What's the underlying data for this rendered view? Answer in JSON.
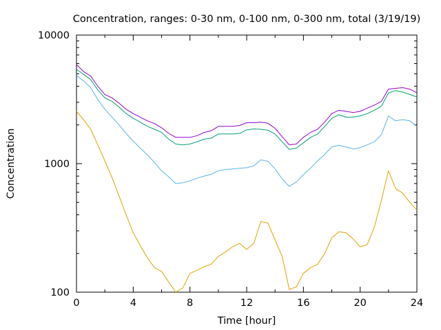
{
  "chart_data": {
    "type": "line",
    "title": "Concentration, ranges: 0-30 nm, 0-100 nm, 0-300 nm, total (3/19/19)",
    "xlabel": "Time [hour]",
    "ylabel": "Concentration",
    "xlim": [
      0,
      24
    ],
    "ylim": [
      100,
      10000
    ],
    "y_scale": "log",
    "x_ticks": [
      "0",
      "4",
      "8",
      "12",
      "16",
      "20",
      "24"
    ],
    "x_tick_values": [
      0,
      4,
      8,
      12,
      16,
      20,
      24
    ],
    "y_ticks": [
      "100",
      "1000",
      "10000"
    ],
    "y_tick_values": [
      100,
      1000,
      10000
    ],
    "grid": false,
    "legend": "none",
    "x": [
      0,
      0.5,
      1,
      1.5,
      2,
      2.5,
      3,
      3.5,
      4,
      4.5,
      5,
      5.5,
      6,
      6.5,
      7,
      7.5,
      8,
      8.5,
      9,
      9.5,
      10,
      10.5,
      11,
      11.5,
      12,
      12.5,
      13,
      13.5,
      14,
      14.5,
      15,
      15.5,
      16,
      16.5,
      17,
      17.5,
      18,
      18.5,
      19,
      19.5,
      20,
      20.5,
      21,
      21.5,
      22,
      22.5,
      23,
      23.5,
      24
    ],
    "series": [
      {
        "color": "#e69f00",
        "values": [
          2550,
          2200,
          1850,
          1400,
          1050,
          780,
          560,
          400,
          290,
          230,
          185,
          155,
          145,
          120,
          100,
          108,
          140,
          148,
          158,
          165,
          190,
          205,
          225,
          240,
          215,
          240,
          355,
          345,
          255,
          190,
          105,
          110,
          140,
          155,
          165,
          200,
          265,
          295,
          290,
          260,
          225,
          235,
          320,
          520,
          880,
          640,
          590,
          500,
          435
        ]
      },
      {
        "color": "#56b4e9",
        "values": [
          4850,
          4400,
          3900,
          3150,
          2650,
          2300,
          2000,
          1720,
          1500,
          1320,
          1170,
          1020,
          880,
          790,
          700,
          710,
          735,
          770,
          800,
          825,
          880,
          900,
          910,
          920,
          930,
          960,
          1070,
          1040,
          910,
          760,
          665,
          720,
          820,
          920,
          1050,
          1180,
          1350,
          1390,
          1350,
          1300,
          1330,
          1400,
          1480,
          1680,
          2350,
          2150,
          2200,
          2150,
          1950
        ]
      },
      {
        "color": "#009e73",
        "values": [
          5400,
          4950,
          4500,
          3750,
          3250,
          3050,
          2750,
          2450,
          2250,
          2100,
          1950,
          1850,
          1750,
          1550,
          1420,
          1400,
          1420,
          1480,
          1550,
          1580,
          1700,
          1700,
          1700,
          1720,
          1830,
          1860,
          1850,
          1820,
          1700,
          1480,
          1290,
          1320,
          1450,
          1600,
          1700,
          1950,
          2250,
          2400,
          2300,
          2300,
          2350,
          2450,
          2600,
          2800,
          3550,
          3700,
          3600,
          3450,
          3300
        ]
      },
      {
        "color": "#9400d3",
        "values": [
          5900,
          5200,
          4800,
          4000,
          3450,
          3250,
          2950,
          2650,
          2450,
          2300,
          2150,
          2050,
          1900,
          1720,
          1600,
          1600,
          1600,
          1650,
          1750,
          1800,
          1950,
          1950,
          1950,
          1980,
          2080,
          2080,
          2100,
          2060,
          1880,
          1620,
          1400,
          1420,
          1600,
          1750,
          1850,
          2100,
          2450,
          2600,
          2550,
          2500,
          2550,
          2700,
          2850,
          3050,
          3800,
          3850,
          3900,
          3800,
          3550
        ]
      }
    ]
  }
}
